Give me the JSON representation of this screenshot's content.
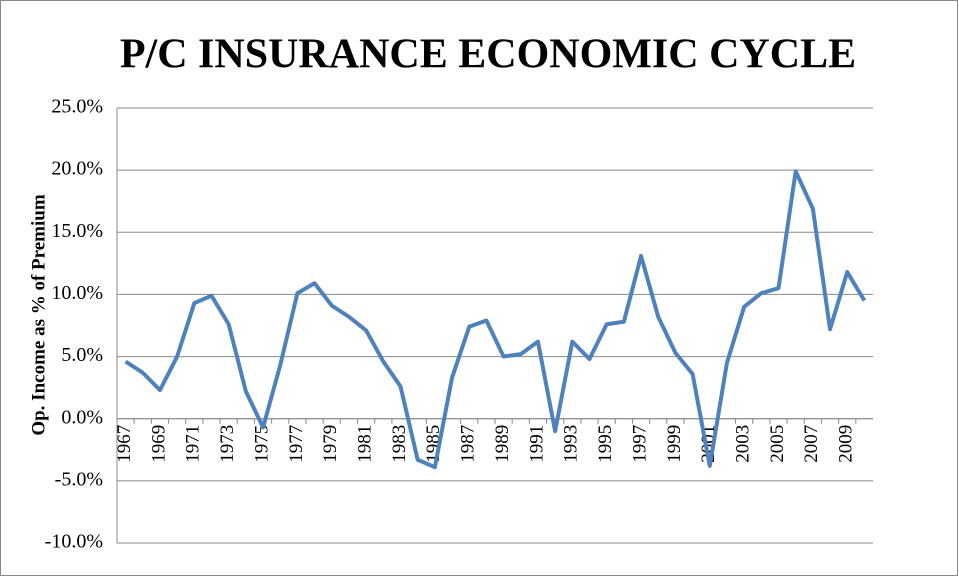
{
  "chart_data": {
    "type": "line",
    "title": "P/C INSURANCE ECONOMIC CYCLE",
    "y_label": "Op. Income as % of Premium",
    "categories": [
      "1967",
      null,
      "1969",
      null,
      "1971",
      null,
      "1973",
      null,
      "1975",
      null,
      "1977",
      null,
      "1979",
      null,
      "1981",
      null,
      "1983",
      null,
      "1985",
      null,
      "1987",
      null,
      "1989",
      null,
      "1991",
      null,
      "1993",
      null,
      "1995",
      null,
      "1997",
      null,
      "1999",
      null,
      "2001",
      null,
      "2003",
      null,
      "2005",
      null,
      "2007",
      null,
      "2009",
      null
    ],
    "series": [
      {
        "color": "#4f81bd",
        "values": [
          4.6,
          3.7,
          2.3,
          5.0,
          9.3,
          9.9,
          7.6,
          2.2,
          -0.7,
          4.3,
          10.1,
          10.9,
          9.1,
          8.2,
          7.1,
          4.6,
          2.6,
          -3.3,
          -3.9,
          3.3,
          7.4,
          7.9,
          5.0,
          5.2,
          6.2,
          -1.0,
          6.2,
          4.8,
          7.6,
          7.8,
          13.1,
          8.2,
          5.3,
          3.6,
          -3.8,
          4.5,
          9.0,
          10.1,
          10.5,
          19.9,
          16.9,
          7.2,
          11.8,
          9.5
        ]
      }
    ],
    "ylim": [
      -10,
      25
    ],
    "yticks": [
      {
        "value": -10,
        "label": "-10.0%"
      },
      {
        "value": -5,
        "label": "-5.0%"
      },
      {
        "value": 0,
        "label": "0.0%"
      },
      {
        "value": 5,
        "label": "5.0%"
      },
      {
        "value": 10,
        "label": "10.0%"
      },
      {
        "value": 15,
        "label": "15.0%"
      },
      {
        "value": 20,
        "label": "20.0%"
      },
      {
        "value": 25,
        "label": "25.0%"
      }
    ],
    "grid": true
  }
}
